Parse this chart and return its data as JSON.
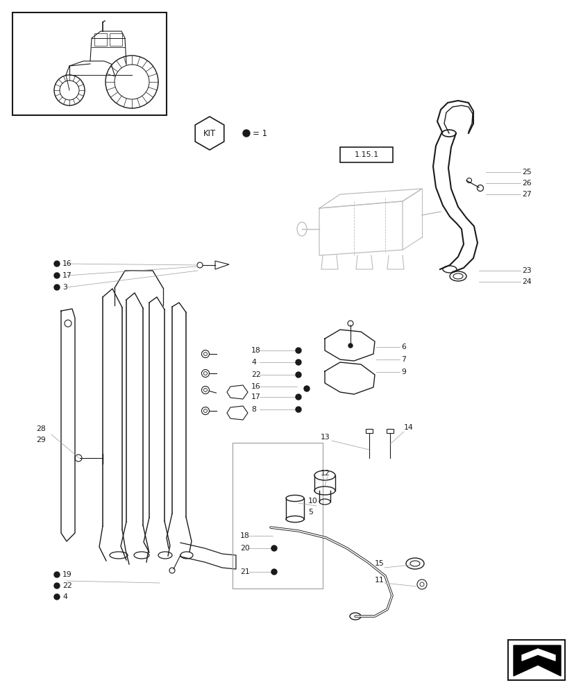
{
  "bg_color": "#ffffff",
  "line_color": "#1a1a1a",
  "gray_color": "#999999",
  "light_gray": "#bbbbbb"
}
